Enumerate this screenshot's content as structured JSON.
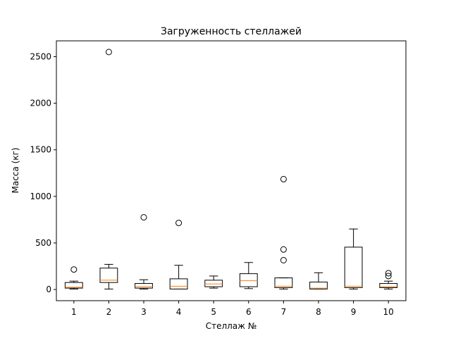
{
  "chart_data": {
    "type": "boxplot",
    "title": "Загруженность стеллажей",
    "xlabel": "Стеллаж №",
    "ylabel": "Масса (кг)",
    "categories": [
      "1",
      "2",
      "3",
      "4",
      "5",
      "6",
      "7",
      "8",
      "9",
      "10"
    ],
    "yticks": [
      "0",
      "500",
      "1000",
      "1500",
      "2000",
      "2500"
    ],
    "ylim": [
      -120,
      2670
    ],
    "grid": false,
    "boxes": [
      {
        "category": "1",
        "whisker_low": 5,
        "q1": 15,
        "median": 25,
        "q3": 75,
        "whisker_high": 90,
        "outliers": [
          215
        ]
      },
      {
        "category": "2",
        "whisker_low": 5,
        "q1": 75,
        "median": 100,
        "q3": 230,
        "whisker_high": 270,
        "outliers": [
          2550
        ]
      },
      {
        "category": "3",
        "whisker_low": 5,
        "q1": 15,
        "median": 30,
        "q3": 65,
        "whisker_high": 105,
        "outliers": [
          775
        ]
      },
      {
        "category": "4",
        "whisker_low": 5,
        "q1": 5,
        "median": 35,
        "q3": 115,
        "whisker_high": 260,
        "outliers": [
          715
        ]
      },
      {
        "category": "5",
        "whisker_low": 15,
        "q1": 30,
        "median": 60,
        "q3": 100,
        "whisker_high": 145,
        "outliers": []
      },
      {
        "category": "6",
        "whisker_low": 10,
        "q1": 30,
        "median": 95,
        "q3": 170,
        "whisker_high": 290,
        "outliers": []
      },
      {
        "category": "7",
        "whisker_low": 5,
        "q1": 20,
        "median": 35,
        "q3": 125,
        "whisker_high": 125,
        "outliers": [
          315,
          430,
          1185
        ]
      },
      {
        "category": "8",
        "whisker_low": 5,
        "q1": 5,
        "median": 15,
        "q3": 80,
        "whisker_high": 180,
        "outliers": []
      },
      {
        "category": "9",
        "whisker_low": 5,
        "q1": 20,
        "median": 35,
        "q3": 455,
        "whisker_high": 650,
        "outliers": []
      },
      {
        "category": "10",
        "whisker_low": 5,
        "q1": 20,
        "median": 30,
        "q3": 65,
        "whisker_high": 90,
        "outliers": [
          145,
          175
        ]
      }
    ],
    "colors": {
      "box": "#000000",
      "median": "#ff7f0e",
      "outlier_edge": "#000000"
    }
  }
}
